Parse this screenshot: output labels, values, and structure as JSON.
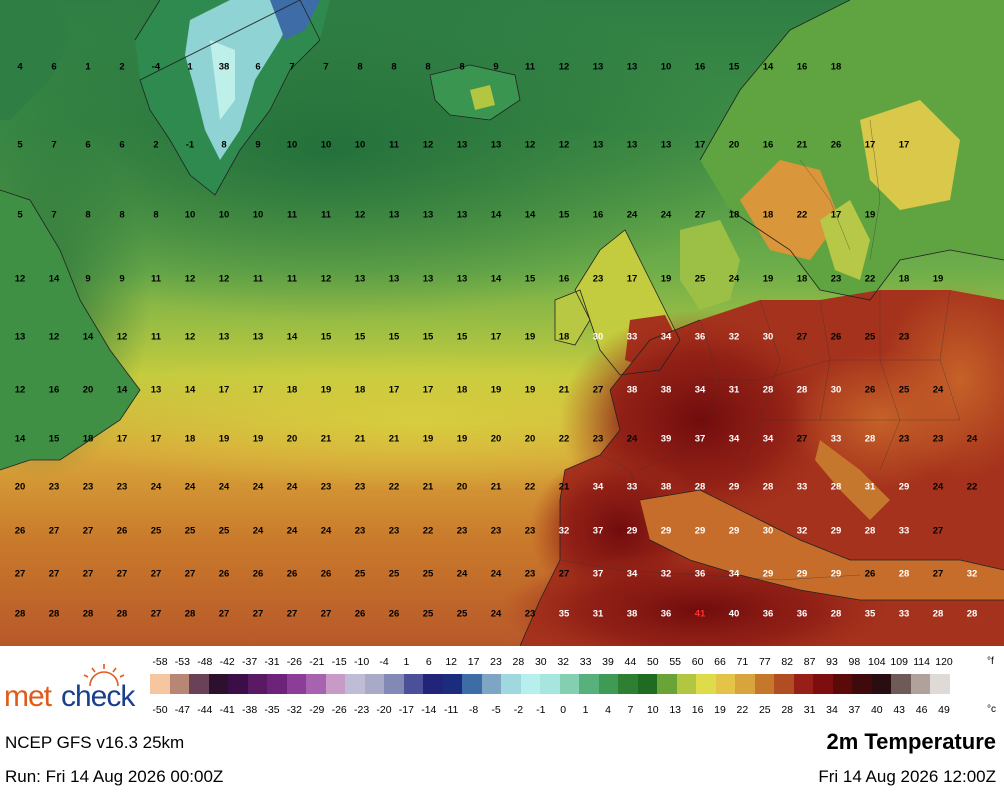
{
  "footer": {
    "model": "NCEP GFS v16.3 25km",
    "run": "Run: Fri 14 Aug 2026 00:00Z",
    "title": "2m Temperature",
    "valid": "Fri 14 Aug 2026 12:00Z"
  },
  "logo": {
    "part1": "met",
    "part2": "check"
  },
  "legend": {
    "unit_f": "°f",
    "unit_c": "°c",
    "fahrenheit": [
      "-58",
      "-53",
      "-48",
      "-42",
      "-37",
      "-31",
      "-26",
      "-21",
      "-15",
      "-10",
      "-4",
      "1",
      "6",
      "12",
      "17",
      "23",
      "28",
      "30",
      "32",
      "33",
      "39",
      "44",
      "50",
      "55",
      "60",
      "66",
      "71",
      "77",
      "82",
      "87",
      "93",
      "98",
      "104",
      "109",
      "114",
      "120"
    ],
    "celsius": [
      "-50",
      "-47",
      "-44",
      "-41",
      "-38",
      "-35",
      "-32",
      "-29",
      "-26",
      "-23",
      "-20",
      "-17",
      "-14",
      "-11",
      "-8",
      "-5",
      "-2",
      "-1",
      "0",
      "1",
      "4",
      "7",
      "10",
      "13",
      "16",
      "19",
      "22",
      "25",
      "28",
      "31",
      "34",
      "37",
      "40",
      "43",
      "46",
      "49"
    ],
    "colors": [
      "#f6c6a0",
      "#b88674",
      "#6a4257",
      "#2d0f2e",
      "#3c0e47",
      "#5a1a63",
      "#6d237a",
      "#8b3d97",
      "#a863b0",
      "#c79ac8",
      "#bfbcd6",
      "#a9aac7",
      "#8389b5",
      "#4b5199",
      "#22247a",
      "#1b2b7e",
      "#3e6ca7",
      "#7fa5c4",
      "#9fd8de",
      "#b6efee",
      "#a7e6de",
      "#84cfb2",
      "#58b07c",
      "#3f9a55",
      "#2e7f32",
      "#1f6b22",
      "#6aa437",
      "#b3c642",
      "#dedc4a",
      "#e3c449",
      "#d7a53c",
      "#c5782b",
      "#b04d23",
      "#981e18",
      "#7d0e10",
      "#5b0a0a",
      "#40090b",
      "#2a0d10",
      "#6e5b58",
      "#b0a29b",
      "#e0dad6"
    ]
  },
  "map_labels": [
    [
      "4",
      "6",
      "1",
      "2",
      "-4",
      "1",
      "38",
      "6",
      "7",
      "7",
      "8",
      "8",
      "8",
      "8",
      "9",
      "11",
      "12",
      "13",
      "13",
      "10",
      "16",
      "15",
      "14",
      "16",
      "18"
    ],
    [
      "5",
      "7",
      "6",
      "6",
      "2",
      "-1",
      "8",
      "9",
      "10",
      "10",
      "10",
      "11",
      "12",
      "13",
      "13",
      "12",
      "12",
      "13",
      "13",
      "13",
      "17",
      "20",
      "16",
      "21",
      "26",
      "17",
      "17"
    ],
    [
      "5",
      "7",
      "8",
      "8",
      "8",
      "10",
      "10",
      "10",
      "11",
      "11",
      "12",
      "13",
      "13",
      "13",
      "14",
      "14",
      "15",
      "16",
      "24",
      "24",
      "27",
      "18",
      "18",
      "22",
      "17",
      "19"
    ],
    [
      "12",
      "14",
      "9",
      "9",
      "11",
      "12",
      "12",
      "11",
      "11",
      "12",
      "13",
      "13",
      "13",
      "13",
      "14",
      "15",
      "16",
      "23",
      "17",
      "19",
      "25",
      "24",
      "19",
      "18",
      "23",
      "22",
      "18",
      "19"
    ],
    [
      "13",
      "12",
      "14",
      "12",
      "11",
      "12",
      "13",
      "13",
      "14",
      "15",
      "15",
      "15",
      "15",
      "15",
      "17",
      "19",
      "18",
      "30",
      "33",
      "34",
      "36",
      "32",
      "30",
      "27",
      "26",
      "25",
      "23"
    ],
    [
      "12",
      "16",
      "20",
      "14",
      "13",
      "14",
      "17",
      "17",
      "18",
      "19",
      "18",
      "17",
      "17",
      "18",
      "19",
      "19",
      "21",
      "27",
      "38",
      "38",
      "34",
      "31",
      "28",
      "28",
      "30",
      "26",
      "25",
      "24"
    ],
    [
      "14",
      "15",
      "18",
      "17",
      "17",
      "18",
      "19",
      "19",
      "20",
      "21",
      "21",
      "21",
      "19",
      "19",
      "20",
      "20",
      "22",
      "23",
      "24",
      "39",
      "37",
      "34",
      "34",
      "27",
      "33",
      "28",
      "23",
      "23",
      "24"
    ],
    [
      "20",
      "23",
      "23",
      "23",
      "24",
      "24",
      "24",
      "24",
      "24",
      "23",
      "23",
      "22",
      "21",
      "20",
      "21",
      "22",
      "21",
      "34",
      "33",
      "38",
      "28",
      "29",
      "28",
      "33",
      "28",
      "31",
      "29",
      "24",
      "22"
    ],
    [
      "26",
      "27",
      "27",
      "26",
      "25",
      "25",
      "25",
      "24",
      "24",
      "24",
      "23",
      "23",
      "22",
      "23",
      "23",
      "23",
      "32",
      "37",
      "29",
      "29",
      "29",
      "29",
      "30",
      "32",
      "29",
      "28",
      "33",
      "27"
    ],
    [
      "27",
      "27",
      "27",
      "27",
      "27",
      "27",
      "26",
      "26",
      "26",
      "26",
      "25",
      "25",
      "25",
      "24",
      "24",
      "23",
      "27",
      "37",
      "34",
      "32",
      "36",
      "34",
      "29",
      "29",
      "29",
      "26",
      "28",
      "27",
      "32"
    ],
    [
      "28",
      "28",
      "28",
      "28",
      "27",
      "28",
      "27",
      "27",
      "27",
      "27",
      "26",
      "26",
      "25",
      "25",
      "24",
      "23",
      "35",
      "31",
      "38",
      "36",
      "41",
      "40",
      "36",
      "36",
      "28",
      "35",
      "33",
      "28",
      "28"
    ]
  ]
}
